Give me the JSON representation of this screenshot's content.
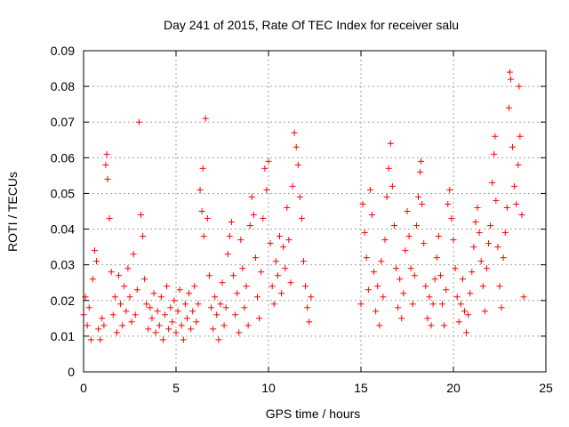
{
  "chart_data": {
    "type": "scatter",
    "title": "Day 241 of 2015, Rate Of TEC Index for receiver salu",
    "xlabel": "GPS time / hours",
    "ylabel": "ROTI / TECUs",
    "xlim": [
      0,
      25
    ],
    "ylim": [
      0,
      0.09
    ],
    "xticks": [
      0,
      5,
      10,
      15,
      20,
      25
    ],
    "xtick_labels": [
      "0",
      "5",
      "10",
      "15",
      "20",
      "25"
    ],
    "yticks": [
      0,
      0.01,
      0.02,
      0.03,
      0.04,
      0.05,
      0.06,
      0.07,
      0.08,
      0.09
    ],
    "ytick_labels": [
      "0",
      "0.01",
      "0.02",
      "0.03",
      "0.04",
      "0.05",
      "0.06",
      "0.07",
      "0.08",
      "0.09"
    ],
    "grid": true,
    "marker": "plus",
    "color": "#ff0000",
    "data_gap_hours": [
      12.4,
      15.0
    ],
    "series": [
      {
        "name": "ROTI",
        "points": [
          [
            0.0,
            0.016
          ],
          [
            0.1,
            0.021
          ],
          [
            0.2,
            0.013
          ],
          [
            0.3,
            0.018
          ],
          [
            0.4,
            0.009
          ],
          [
            0.5,
            0.026
          ],
          [
            0.6,
            0.034
          ],
          [
            0.7,
            0.031
          ],
          [
            0.8,
            0.012
          ],
          [
            0.9,
            0.009
          ],
          [
            1.0,
            0.015
          ],
          [
            1.1,
            0.013
          ],
          [
            1.2,
            0.058
          ],
          [
            1.25,
            0.061
          ],
          [
            1.3,
            0.054
          ],
          [
            1.4,
            0.043
          ],
          [
            1.5,
            0.028
          ],
          [
            1.6,
            0.016
          ],
          [
            1.7,
            0.021
          ],
          [
            1.8,
            0.011
          ],
          [
            1.9,
            0.027
          ],
          [
            2.0,
            0.019
          ],
          [
            2.1,
            0.013
          ],
          [
            2.2,
            0.024
          ],
          [
            2.3,
            0.017
          ],
          [
            2.4,
            0.029
          ],
          [
            2.5,
            0.021
          ],
          [
            2.6,
            0.014
          ],
          [
            2.7,
            0.033
          ],
          [
            2.8,
            0.016
          ],
          [
            2.9,
            0.023
          ],
          [
            3.0,
            0.07
          ],
          [
            3.1,
            0.044
          ],
          [
            3.2,
            0.038
          ],
          [
            3.3,
            0.026
          ],
          [
            3.4,
            0.019
          ],
          [
            3.5,
            0.012
          ],
          [
            3.6,
            0.018
          ],
          [
            3.7,
            0.015
          ],
          [
            3.8,
            0.022
          ],
          [
            3.9,
            0.011
          ],
          [
            4.0,
            0.017
          ],
          [
            4.1,
            0.013
          ],
          [
            4.2,
            0.021
          ],
          [
            4.3,
            0.009
          ],
          [
            4.4,
            0.016
          ],
          [
            4.5,
            0.024
          ],
          [
            4.6,
            0.012
          ],
          [
            4.7,
            0.018
          ],
          [
            4.8,
            0.014
          ],
          [
            4.9,
            0.02
          ],
          [
            5.0,
            0.011
          ],
          [
            5.1,
            0.017
          ],
          [
            5.2,
            0.023
          ],
          [
            5.3,
            0.013
          ],
          [
            5.4,
            0.009
          ],
          [
            5.5,
            0.019
          ],
          [
            5.6,
            0.015
          ],
          [
            5.7,
            0.022
          ],
          [
            5.8,
            0.012
          ],
          [
            5.9,
            0.017
          ],
          [
            6.0,
            0.024
          ],
          [
            6.1,
            0.014
          ],
          [
            6.2,
            0.019
          ],
          [
            6.3,
            0.051
          ],
          [
            6.4,
            0.045
          ],
          [
            6.45,
            0.057
          ],
          [
            6.5,
            0.038
          ],
          [
            6.6,
            0.071
          ],
          [
            6.7,
            0.043
          ],
          [
            6.8,
            0.027
          ],
          [
            6.9,
            0.018
          ],
          [
            7.0,
            0.012
          ],
          [
            7.1,
            0.021
          ],
          [
            7.2,
            0.016
          ],
          [
            7.3,
            0.009
          ],
          [
            7.4,
            0.019
          ],
          [
            7.5,
            0.025
          ],
          [
            7.6,
            0.013
          ],
          [
            7.7,
            0.018
          ],
          [
            7.8,
            0.033
          ],
          [
            7.9,
            0.038
          ],
          [
            8.0,
            0.042
          ],
          [
            8.1,
            0.027
          ],
          [
            8.2,
            0.016
          ],
          [
            8.3,
            0.022
          ],
          [
            8.4,
            0.011
          ],
          [
            8.5,
            0.037
          ],
          [
            8.6,
            0.029
          ],
          [
            8.7,
            0.018
          ],
          [
            8.8,
            0.024
          ],
          [
            8.9,
            0.013
          ],
          [
            9.0,
            0.041
          ],
          [
            9.1,
            0.049
          ],
          [
            9.2,
            0.044
          ],
          [
            9.3,
            0.032
          ],
          [
            9.4,
            0.021
          ],
          [
            9.5,
            0.015
          ],
          [
            9.6,
            0.028
          ],
          [
            9.7,
            0.043
          ],
          [
            9.8,
            0.057
          ],
          [
            9.9,
            0.051
          ],
          [
            10.0,
            0.059
          ],
          [
            10.1,
            0.036
          ],
          [
            10.2,
            0.024
          ],
          [
            10.3,
            0.019
          ],
          [
            10.4,
            0.031
          ],
          [
            10.5,
            0.027
          ],
          [
            10.6,
            0.038
          ],
          [
            10.7,
            0.022
          ],
          [
            10.8,
            0.035
          ],
          [
            10.9,
            0.029
          ],
          [
            11.0,
            0.046
          ],
          [
            11.1,
            0.037
          ],
          [
            11.2,
            0.025
          ],
          [
            11.3,
            0.052
          ],
          [
            11.4,
            0.067
          ],
          [
            11.5,
            0.063
          ],
          [
            11.6,
            0.058
          ],
          [
            11.7,
            0.049
          ],
          [
            11.8,
            0.043
          ],
          [
            11.9,
            0.031
          ],
          [
            12.0,
            0.024
          ],
          [
            12.1,
            0.018
          ],
          [
            12.2,
            0.014
          ],
          [
            12.3,
            0.021
          ],
          [
            15.0,
            0.019
          ],
          [
            15.1,
            0.047
          ],
          [
            15.2,
            0.039
          ],
          [
            15.3,
            0.032
          ],
          [
            15.4,
            0.023
          ],
          [
            15.5,
            0.051
          ],
          [
            15.6,
            0.044
          ],
          [
            15.7,
            0.028
          ],
          [
            15.8,
            0.017
          ],
          [
            15.9,
            0.024
          ],
          [
            16.0,
            0.013
          ],
          [
            16.1,
            0.031
          ],
          [
            16.2,
            0.021
          ],
          [
            16.3,
            0.037
          ],
          [
            16.4,
            0.049
          ],
          [
            16.5,
            0.057
          ],
          [
            16.6,
            0.064
          ],
          [
            16.7,
            0.052
          ],
          [
            16.8,
            0.041
          ],
          [
            16.9,
            0.029
          ],
          [
            17.0,
            0.018
          ],
          [
            17.1,
            0.026
          ],
          [
            17.2,
            0.015
          ],
          [
            17.3,
            0.022
          ],
          [
            17.4,
            0.034
          ],
          [
            17.5,
            0.045
          ],
          [
            17.6,
            0.038
          ],
          [
            17.7,
            0.029
          ],
          [
            17.8,
            0.019
          ],
          [
            17.9,
            0.027
          ],
          [
            18.0,
            0.041
          ],
          [
            18.1,
            0.049
          ],
          [
            18.2,
            0.056
          ],
          [
            18.25,
            0.059
          ],
          [
            18.3,
            0.047
          ],
          [
            18.4,
            0.036
          ],
          [
            18.5,
            0.024
          ],
          [
            18.6,
            0.015
          ],
          [
            18.7,
            0.021
          ],
          [
            18.8,
            0.013
          ],
          [
            18.9,
            0.019
          ],
          [
            19.0,
            0.026
          ],
          [
            19.1,
            0.032
          ],
          [
            19.2,
            0.038
          ],
          [
            19.3,
            0.027
          ],
          [
            19.4,
            0.019
          ],
          [
            19.5,
            0.013
          ],
          [
            19.6,
            0.023
          ],
          [
            19.7,
            0.047
          ],
          [
            19.8,
            0.051
          ],
          [
            19.9,
            0.043
          ],
          [
            20.0,
            0.037
          ],
          [
            20.1,
            0.029
          ],
          [
            20.2,
            0.021
          ],
          [
            20.3,
            0.014
          ],
          [
            20.4,
            0.019
          ],
          [
            20.5,
            0.026
          ],
          [
            20.6,
            0.017
          ],
          [
            20.7,
            0.011
          ],
          [
            20.8,
            0.016
          ],
          [
            20.9,
            0.022
          ],
          [
            21.0,
            0.028
          ],
          [
            21.1,
            0.035
          ],
          [
            21.2,
            0.042
          ],
          [
            21.3,
            0.046
          ],
          [
            21.4,
            0.039
          ],
          [
            21.5,
            0.031
          ],
          [
            21.6,
            0.024
          ],
          [
            21.7,
            0.017
          ],
          [
            21.8,
            0.029
          ],
          [
            21.9,
            0.036
          ],
          [
            22.0,
            0.041
          ],
          [
            22.1,
            0.053
          ],
          [
            22.2,
            0.061
          ],
          [
            22.25,
            0.066
          ],
          [
            22.3,
            0.048
          ],
          [
            22.4,
            0.035
          ],
          [
            22.5,
            0.024
          ],
          [
            22.6,
            0.018
          ],
          [
            22.7,
            0.032
          ],
          [
            22.8,
            0.039
          ],
          [
            22.9,
            0.046
          ],
          [
            23.0,
            0.074
          ],
          [
            23.05,
            0.084
          ],
          [
            23.1,
            0.082
          ],
          [
            23.2,
            0.063
          ],
          [
            23.3,
            0.052
          ],
          [
            23.4,
            0.047
          ],
          [
            23.5,
            0.058
          ],
          [
            23.55,
            0.08
          ],
          [
            23.6,
            0.066
          ],
          [
            23.7,
            0.044
          ],
          [
            23.8,
            0.021
          ]
        ]
      }
    ]
  }
}
